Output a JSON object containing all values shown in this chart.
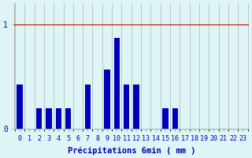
{
  "values": [
    0.42,
    0.0,
    0.2,
    0.2,
    0.2,
    0.2,
    0.0,
    0.42,
    0.0,
    0.57,
    0.87,
    0.42,
    0.42,
    0.0,
    0.0,
    0.2,
    0.2,
    0.0,
    0.0,
    0.0,
    0.0,
    0.0,
    0.0,
    0.0
  ],
  "xlabel": "Précipitations 6min ( mm )",
  "ylim": [
    0,
    1.2
  ],
  "yticks": [
    0,
    1
  ],
  "ytick_labels": [
    "0",
    "1"
  ],
  "bar_color": "#0000bb",
  "bg_color": "#dff5f5",
  "grid_color": "#b0b0b0",
  "tick_label_color": "#0000bb",
  "xlabel_color": "#0000bb",
  "xlabel_fontsize": 7.5,
  "tick_fontsize": 6
}
